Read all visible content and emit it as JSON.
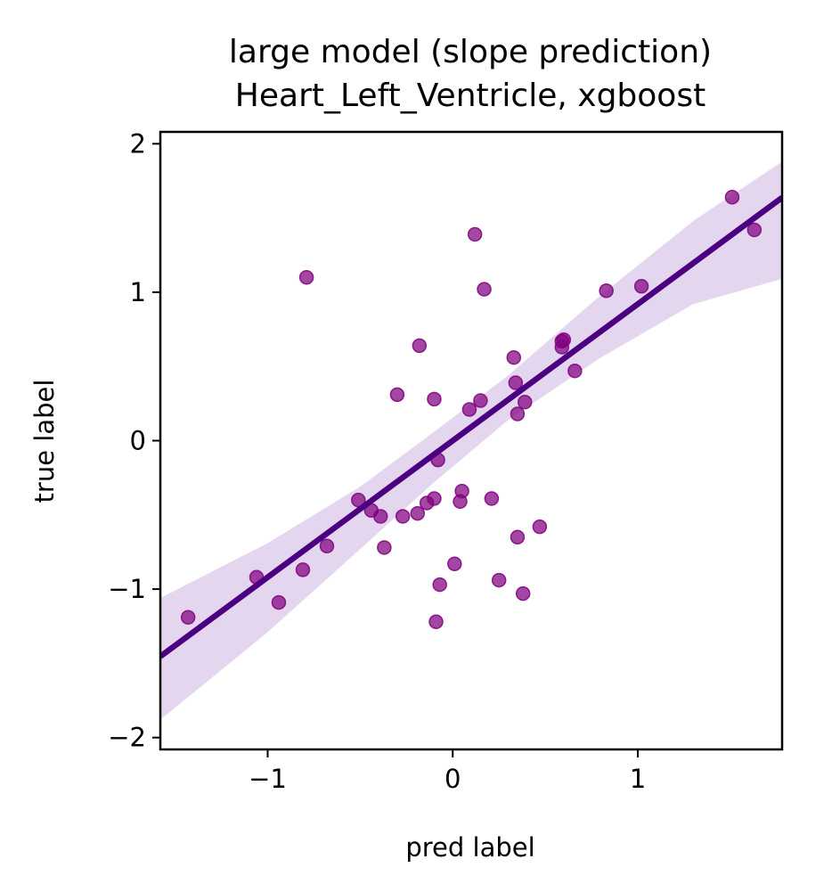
{
  "chart_data": {
    "type": "scatter",
    "title_lines": [
      "large model (slope prediction)",
      "Heart_Left_Ventricle, xgboost"
    ],
    "xlabel": "pred label",
    "ylabel": "true label",
    "xlim": [
      -1.58,
      1.78
    ],
    "ylim": [
      -2.08,
      2.08
    ],
    "xticks": [
      -1,
      0,
      1
    ],
    "yticks": [
      -2,
      -1,
      0,
      1,
      2
    ],
    "xtick_labels": [
      "−1",
      "0",
      "1"
    ],
    "ytick_labels": [
      "−2",
      "−1",
      "0",
      "1",
      "2"
    ],
    "grid": false,
    "legend": "none",
    "point_color": "#800080",
    "line_color": "#4b0082",
    "band_color": "#e3d6ee",
    "regression": {
      "slope": 0.92,
      "intercept": 0.0,
      "band_lower": [
        [
          -1.58,
          -1.88
        ],
        [
          -1.0,
          -1.29
        ],
        [
          -0.5,
          -0.73
        ],
        [
          -0.1,
          -0.28
        ],
        [
          0.3,
          0.14
        ],
        [
          0.8,
          0.56
        ],
        [
          1.3,
          0.92
        ],
        [
          1.78,
          1.09
        ]
      ],
      "band_upper": [
        [
          -1.58,
          -1.06
        ],
        [
          -1.0,
          -0.69
        ],
        [
          -0.5,
          -0.31
        ],
        [
          -0.1,
          0.06
        ],
        [
          0.3,
          0.44
        ],
        [
          0.8,
          0.98
        ],
        [
          1.3,
          1.48
        ],
        [
          1.78,
          1.88
        ]
      ]
    },
    "points": [
      {
        "x": -1.43,
        "y": -1.19
      },
      {
        "x": -1.06,
        "y": -0.92
      },
      {
        "x": -0.94,
        "y": -1.09
      },
      {
        "x": -0.81,
        "y": -0.87
      },
      {
        "x": -0.79,
        "y": 1.1
      },
      {
        "x": -0.68,
        "y": -0.71
      },
      {
        "x": -0.51,
        "y": -0.4
      },
      {
        "x": -0.44,
        "y": -0.47
      },
      {
        "x": -0.39,
        "y": -0.51
      },
      {
        "x": -0.37,
        "y": -0.72
      },
      {
        "x": -0.3,
        "y": 0.31
      },
      {
        "x": -0.27,
        "y": -0.51
      },
      {
        "x": -0.19,
        "y": -0.49
      },
      {
        "x": -0.18,
        "y": 0.64
      },
      {
        "x": -0.14,
        "y": -0.42
      },
      {
        "x": -0.1,
        "y": -0.39
      },
      {
        "x": -0.1,
        "y": 0.28
      },
      {
        "x": -0.09,
        "y": -1.22
      },
      {
        "x": -0.08,
        "y": -0.13
      },
      {
        "x": -0.07,
        "y": -0.97
      },
      {
        "x": 0.01,
        "y": -0.83
      },
      {
        "x": 0.04,
        "y": -0.41
      },
      {
        "x": 0.05,
        "y": -0.34
      },
      {
        "x": 0.09,
        "y": 0.21
      },
      {
        "x": 0.12,
        "y": 1.39
      },
      {
        "x": 0.15,
        "y": 0.27
      },
      {
        "x": 0.17,
        "y": 1.02
      },
      {
        "x": 0.21,
        "y": -0.39
      },
      {
        "x": 0.25,
        "y": -0.94
      },
      {
        "x": 0.33,
        "y": 0.56
      },
      {
        "x": 0.34,
        "y": 0.39
      },
      {
        "x": 0.35,
        "y": -0.65
      },
      {
        "x": 0.35,
        "y": 0.18
      },
      {
        "x": 0.38,
        "y": -1.03
      },
      {
        "x": 0.39,
        "y": 0.26
      },
      {
        "x": 0.47,
        "y": -0.58
      },
      {
        "x": 0.59,
        "y": 0.63
      },
      {
        "x": 0.59,
        "y": 0.67
      },
      {
        "x": 0.6,
        "y": 0.68
      },
      {
        "x": 0.66,
        "y": 0.47
      },
      {
        "x": 0.83,
        "y": 1.01
      },
      {
        "x": 1.02,
        "y": 1.04
      },
      {
        "x": 1.51,
        "y": 1.64
      },
      {
        "x": 1.63,
        "y": 1.42
      }
    ]
  }
}
